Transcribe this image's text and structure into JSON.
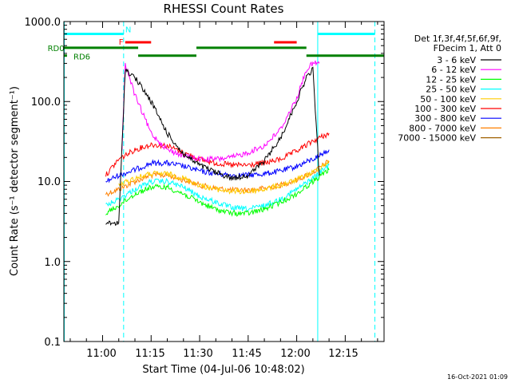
{
  "chart_data": {
    "type": "line",
    "title": "RHESSI Count Rates",
    "xlabel": "Start Time (04-Jul-06 10:48:02)",
    "ylabel": "Count Rate (s⁻¹ detector segment⁻¹)",
    "y_scale": "log",
    "ylim": [
      0.1,
      1000
    ],
    "xlim": [
      "10:48:02",
      "12:27:00"
    ],
    "y_tick_labels": [
      "1000.0",
      "100.0",
      "10.0",
      "1.0",
      "0.1"
    ],
    "y_tick_values": [
      1000,
      100,
      10,
      1,
      0.1
    ],
    "x_tick_labels": [
      "11:00",
      "11:15",
      "11:30",
      "11:45",
      "12:00",
      "12:15"
    ],
    "x_tick_values": [
      "11:00",
      "11:15",
      "11:30",
      "11:45",
      "12:00",
      "12:15"
    ],
    "legend_header": [
      "Det 1f,3f,4f,5f,6f,9f,",
      "FDecim 1, Att 0"
    ],
    "legend_position": "right",
    "timestamp": "16-Oct-2021 01:09",
    "series": [
      {
        "name": "3 - 6 keV",
        "color": "#000000",
        "x": [
          "11:01",
          "11:05",
          "11:07",
          "11:10",
          "11:15",
          "11:20",
          "11:25",
          "11:30",
          "11:35",
          "11:40",
          "11:45",
          "11:50",
          "11:55",
          "12:00",
          "12:03",
          "12:05",
          "12:07"
        ],
        "y": [
          3,
          3,
          250,
          200,
          100,
          40,
          22,
          16,
          13,
          11,
          12,
          18,
          35,
          100,
          200,
          250,
          12
        ]
      },
      {
        "name": "6 - 12 keV",
        "color": "#ff00ff",
        "x": [
          "11:06",
          "11:07",
          "11:10",
          "11:15",
          "11:20",
          "11:25",
          "11:30",
          "11:35",
          "11:40",
          "11:45",
          "11:50",
          "11:55",
          "12:00",
          "12:03",
          "12:05",
          "12:07"
        ],
        "y": [
          25,
          300,
          120,
          40,
          25,
          21,
          19,
          19,
          20,
          23,
          28,
          45,
          110,
          250,
          300,
          300
        ]
      },
      {
        "name": "12 - 25 keV",
        "color": "#00ff00",
        "x": [
          "11:01",
          "11:05",
          "11:10",
          "11:15",
          "11:20",
          "11:25",
          "11:30",
          "11:35",
          "11:40",
          "11:45",
          "11:50",
          "11:55",
          "12:00",
          "12:05",
          "12:10"
        ],
        "y": [
          4,
          5,
          7,
          8.5,
          8.5,
          7,
          5.5,
          4.5,
          4,
          4,
          4.5,
          5.5,
          7,
          10,
          14
        ]
      },
      {
        "name": "25 - 50 keV",
        "color": "#00ffff",
        "x": [
          "11:01",
          "11:05",
          "11:10",
          "11:15",
          "11:20",
          "11:25",
          "11:30",
          "11:35",
          "11:40",
          "11:45",
          "11:50",
          "11:55",
          "12:00",
          "12:05",
          "12:10"
        ],
        "y": [
          5,
          6,
          8,
          10,
          10,
          8.5,
          6.5,
          5.5,
          4.7,
          4.5,
          5,
          6,
          8,
          11,
          16
        ]
      },
      {
        "name": "50 - 100 keV",
        "color": "#ffcc00",
        "x": [
          "11:05",
          "11:10",
          "11:15",
          "11:20",
          "11:25",
          "11:30",
          "11:35",
          "11:40",
          "11:45",
          "11:50",
          "11:55",
          "12:00",
          "12:05",
          "12:10"
        ],
        "y": [
          9,
          11,
          12.5,
          12.5,
          11,
          9,
          8,
          7.5,
          7.5,
          8,
          9,
          10.5,
          13,
          18
        ]
      },
      {
        "name": "100 - 300 keV",
        "color": "#ff0000",
        "x": [
          "11:01",
          "11:05",
          "11:10",
          "11:15",
          "11:20",
          "11:25",
          "11:30",
          "11:35",
          "11:40",
          "11:45",
          "11:50",
          "11:55",
          "12:00",
          "12:05",
          "12:10"
        ],
        "y": [
          12,
          19,
          25,
          29,
          28,
          23,
          19,
          17,
          16,
          16,
          17,
          19,
          24,
          32,
          40
        ]
      },
      {
        "name": "300 - 800 keV",
        "color": "#0000ff",
        "x": [
          "11:01",
          "11:05",
          "11:10",
          "11:15",
          "11:20",
          "11:25",
          "11:30",
          "11:35",
          "11:40",
          "11:45",
          "11:50",
          "11:55",
          "12:00",
          "12:05",
          "12:10"
        ],
        "y": [
          10,
          12,
          14,
          17,
          17,
          15.5,
          13.5,
          12.5,
          12,
          12,
          12.5,
          13.5,
          15.5,
          19,
          25
        ]
      },
      {
        "name": "800 - 7000 keV",
        "color": "#ff8000",
        "x": [
          "11:01",
          "11:05",
          "11:10",
          "11:15",
          "11:20",
          "11:25",
          "11:30",
          "11:35",
          "11:40",
          "11:45",
          "11:50",
          "11:55",
          "12:00",
          "12:05",
          "12:10"
        ],
        "y": [
          7,
          8,
          10,
          12,
          12,
          10.5,
          9,
          8.2,
          7.8,
          7.8,
          8.2,
          9,
          10.5,
          13,
          18
        ]
      },
      {
        "name": "7000 - 15000 keV",
        "color": "#a06000",
        "x": [],
        "y": []
      }
    ],
    "annotations": {
      "vertical_lines": [
        {
          "time": "10:48:10",
          "style": "solid",
          "color": "#00ffff"
        },
        {
          "time": "11:06:30",
          "style": "dashed",
          "color": "#00ffff"
        },
        {
          "time": "12:06:30",
          "style": "solid",
          "color": "#00ffff"
        },
        {
          "time": "12:24:10",
          "style": "dashed",
          "color": "#00ffff"
        }
      ],
      "cyan_bars": [
        {
          "start": "10:48:02",
          "end": "11:06:30",
          "level": 700
        },
        {
          "start": "12:06:30",
          "end": "12:24:10",
          "level": 700
        }
      ],
      "red_bars": [
        {
          "start": "11:07",
          "end": "11:15",
          "level": 550
        },
        {
          "start": "11:53",
          "end": "12:00",
          "level": 550
        }
      ],
      "green_bars": [
        {
          "start": "10:48:02",
          "end": "11:11",
          "level": 470
        },
        {
          "start": "10:48:02",
          "end": "10:49",
          "level": 375
        },
        {
          "start": "11:11",
          "end": "11:29",
          "level": 375
        },
        {
          "start": "11:29",
          "end": "12:03",
          "level": 470
        },
        {
          "start": "12:03",
          "end": "12:27",
          "level": 375
        }
      ],
      "labels": [
        {
          "text": "N",
          "time": "11:07",
          "level": 800,
          "color": "#00ffff"
        },
        {
          "text": "F",
          "time": "11:05",
          "level": 560,
          "color": "#ff0000"
        },
        {
          "text": "RD0",
          "time": "10:43",
          "level": 470,
          "color": "#008000"
        },
        {
          "text": "RD6",
          "time": "10:51",
          "level": 370,
          "color": "#008000"
        }
      ]
    }
  }
}
